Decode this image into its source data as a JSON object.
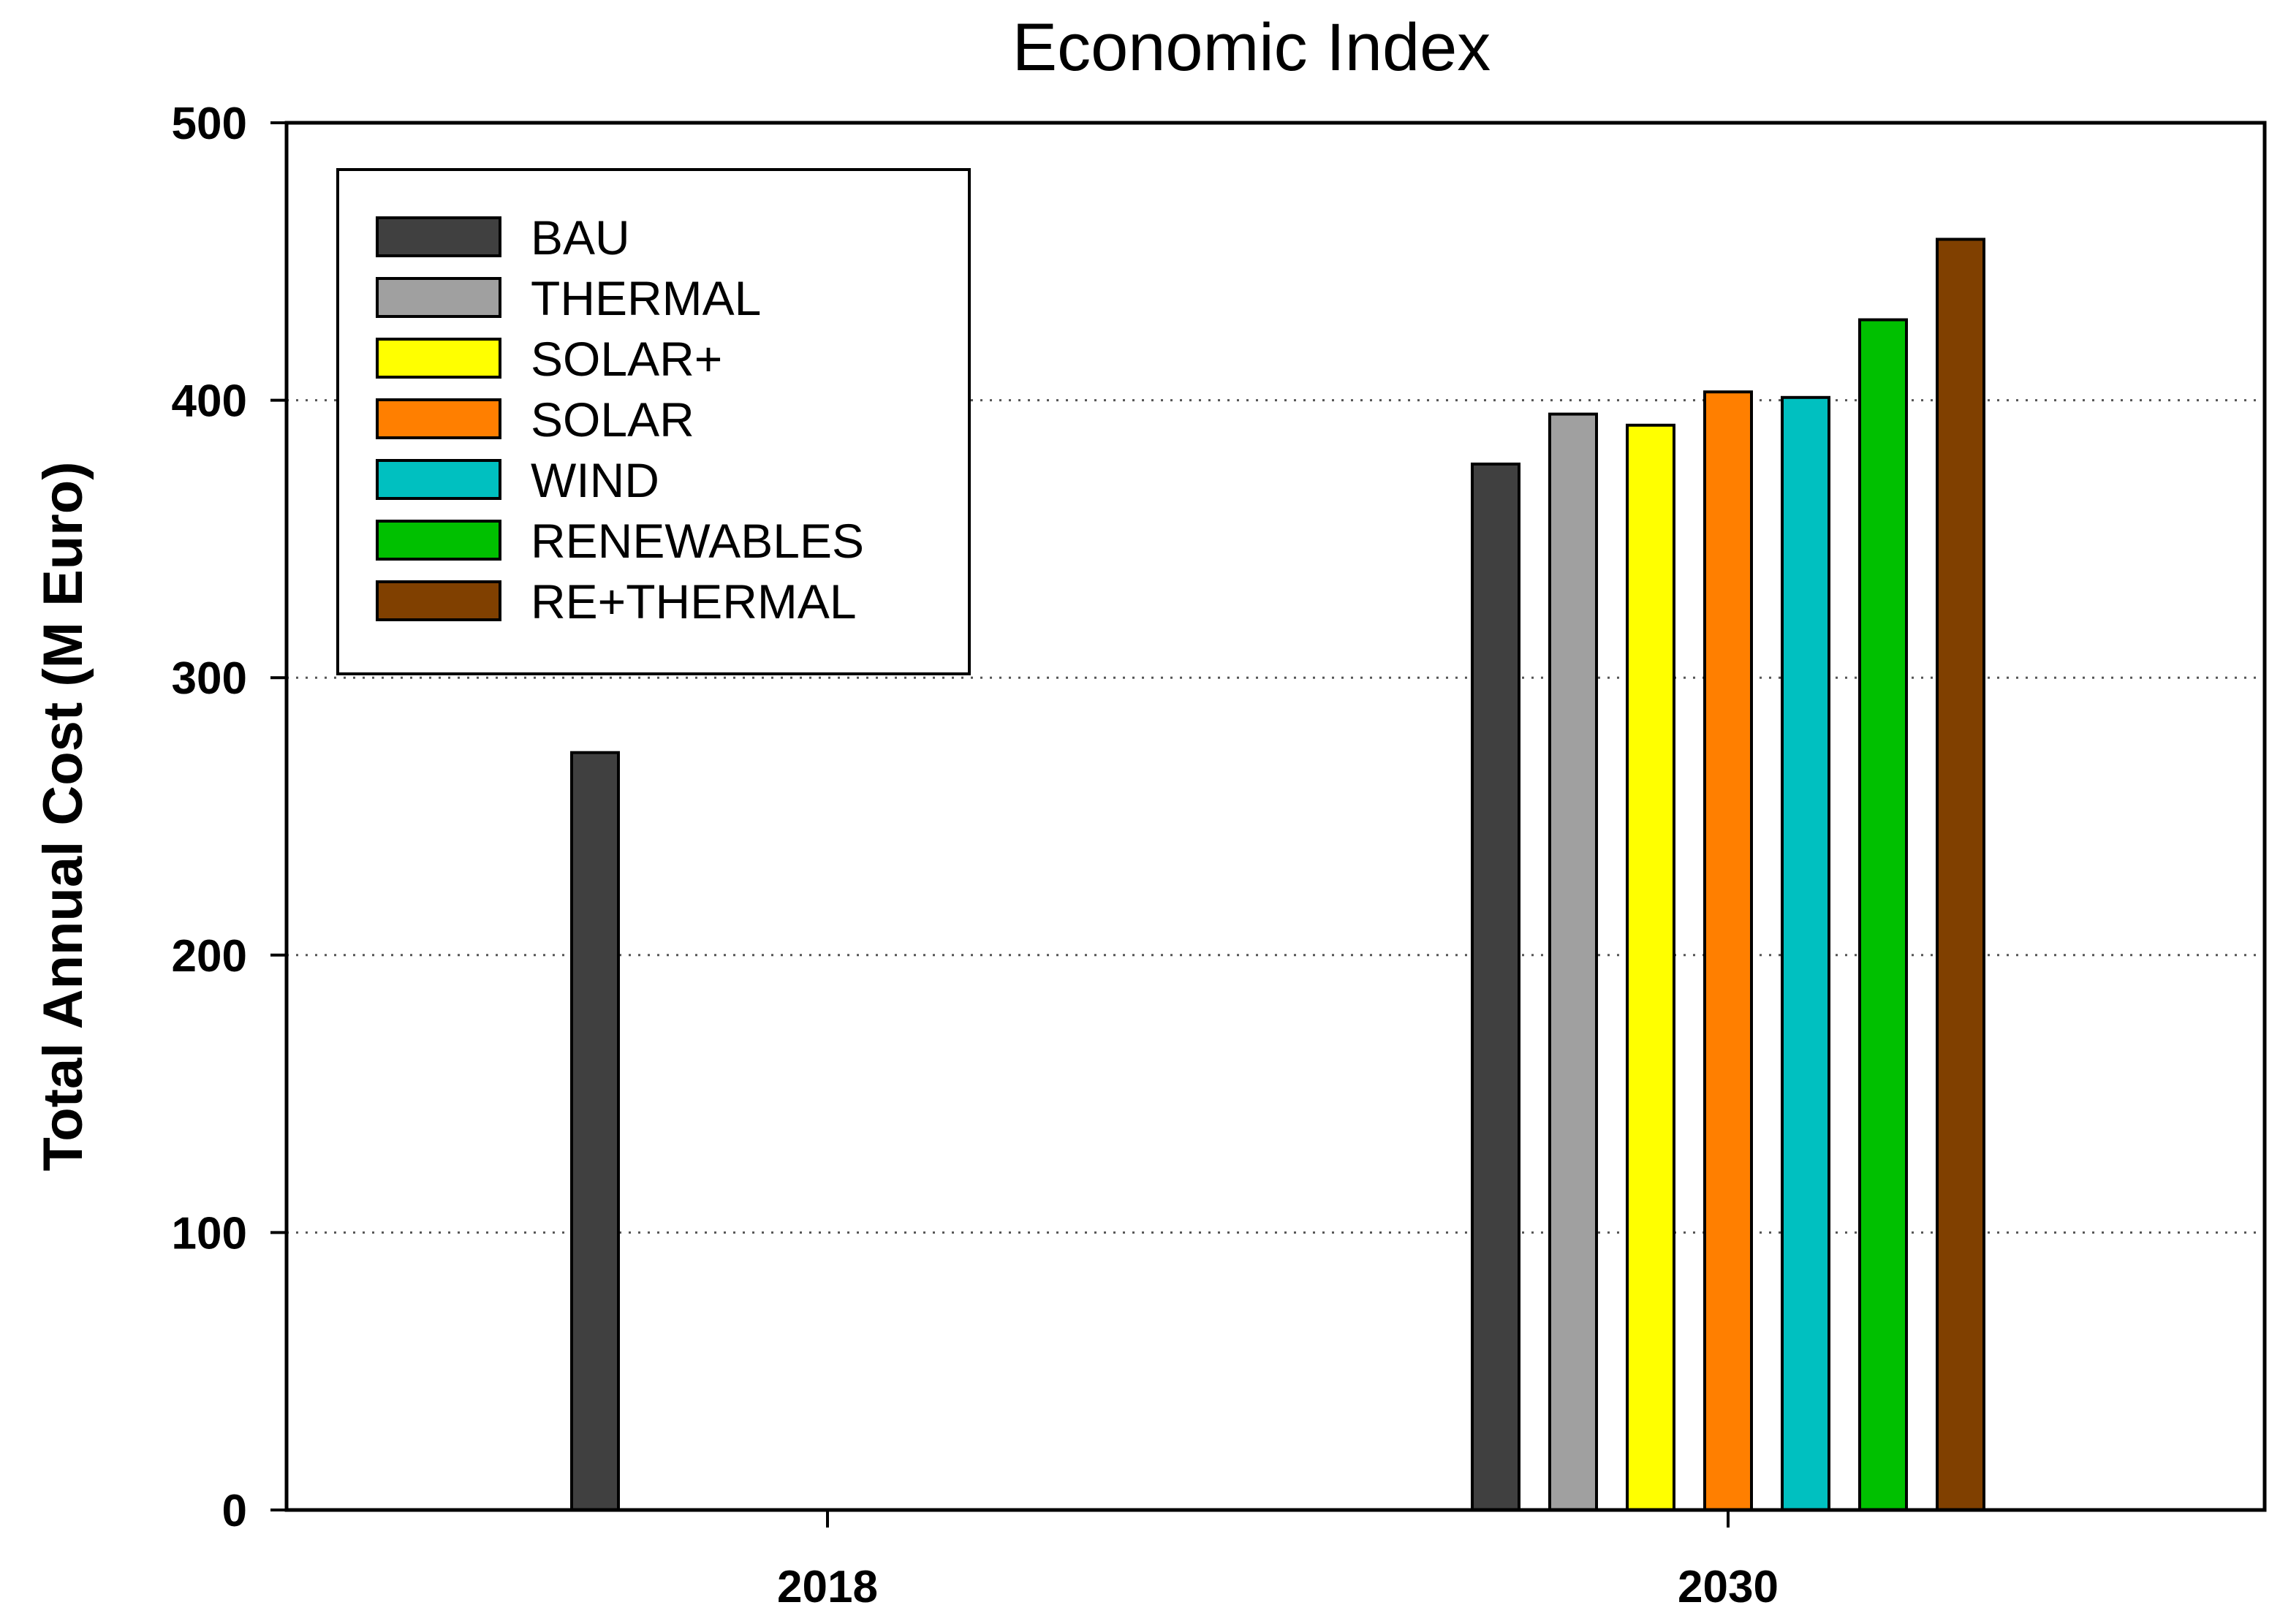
{
  "chart_data": {
    "type": "bar",
    "title": "Economic Index",
    "xlabel": "",
    "ylabel": "Total Annual Cost (M Euro)",
    "ylim": [
      0,
      500
    ],
    "yticks": [
      "0",
      "100",
      "200",
      "300",
      "400",
      "500"
    ],
    "categories": [
      "2018",
      "2030"
    ],
    "grid": "horizontal dotted",
    "legend_position": "top-left",
    "series": [
      {
        "name": "BAU",
        "color": "#404040",
        "values": [
          273,
          377
        ]
      },
      {
        "name": "THERMAL",
        "color": "#a0a0a0",
        "values": [
          null,
          395
        ]
      },
      {
        "name": "SOLAR+",
        "color": "#ffff00",
        "values": [
          null,
          391
        ]
      },
      {
        "name": "SOLAR",
        "color": "#ff7f00",
        "values": [
          null,
          403
        ]
      },
      {
        "name": "WIND",
        "color": "#00c0c0",
        "values": [
          null,
          401
        ]
      },
      {
        "name": "RENEWABLES",
        "color": "#00c000",
        "values": [
          null,
          429
        ]
      },
      {
        "name": "RE+THERMAL",
        "color": "#804000",
        "values": [
          null,
          458
        ]
      }
    ]
  }
}
